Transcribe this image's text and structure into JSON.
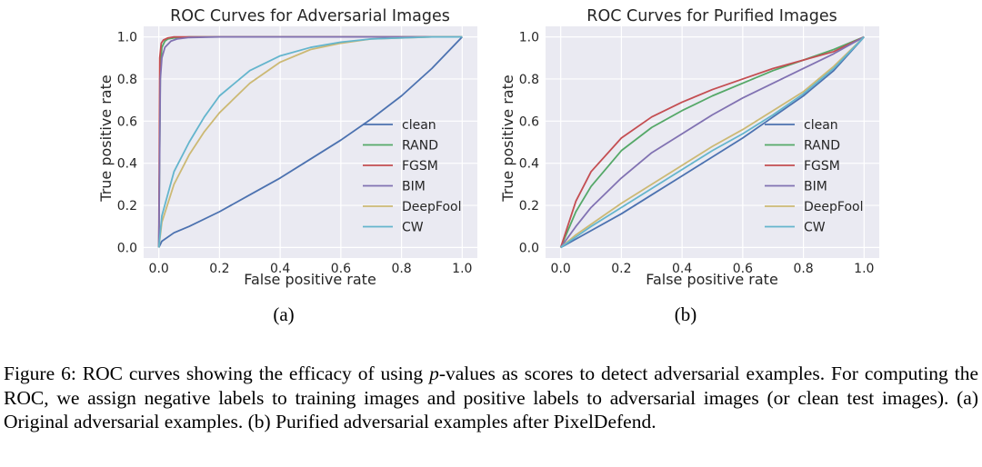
{
  "chart_data": [
    {
      "type": "line",
      "title": "ROC Curves for Adversarial Images",
      "xlabel": "False positive rate",
      "ylabel": "True positive rate",
      "xlim": [
        0,
        1
      ],
      "ylim": [
        0,
        1
      ],
      "xticks": [
        "0.0",
        "0.2",
        "0.4",
        "0.6",
        "0.8",
        "1.0"
      ],
      "yticks": [
        "0.0",
        "0.2",
        "0.4",
        "0.6",
        "0.8",
        "1.0"
      ],
      "grid": true,
      "legend_position": "lower-right",
      "sublabel": "(a)",
      "series": [
        {
          "name": "clean",
          "color": "#4c72b0",
          "x": [
            0,
            0.01,
            0.05,
            0.1,
            0.2,
            0.3,
            0.4,
            0.5,
            0.6,
            0.7,
            0.8,
            0.9,
            1.0
          ],
          "y": [
            0,
            0.03,
            0.07,
            0.1,
            0.17,
            0.25,
            0.33,
            0.42,
            0.51,
            0.61,
            0.72,
            0.85,
            1.0
          ]
        },
        {
          "name": "RAND",
          "color": "#55a868",
          "x": [
            0,
            0.005,
            0.01,
            0.02,
            0.03,
            0.05,
            0.1,
            0.2,
            1.0
          ],
          "y": [
            0,
            0.85,
            0.95,
            0.98,
            0.99,
            0.995,
            1.0,
            1.0,
            1.0
          ]
        },
        {
          "name": "FGSM",
          "color": "#c44e52",
          "x": [
            0,
            0.003,
            0.008,
            0.015,
            0.03,
            0.05,
            0.1,
            1.0
          ],
          "y": [
            0,
            0.9,
            0.97,
            0.985,
            0.995,
            1.0,
            1.0,
            1.0
          ]
        },
        {
          "name": "BIM",
          "color": "#8172b2",
          "x": [
            0,
            0.005,
            0.01,
            0.02,
            0.04,
            0.06,
            0.1,
            0.2,
            1.0
          ],
          "y": [
            0,
            0.8,
            0.9,
            0.95,
            0.98,
            0.99,
            0.997,
            1.0,
            1.0
          ]
        },
        {
          "name": "DeepFool",
          "color": "#ccb974",
          "x": [
            0,
            0.01,
            0.05,
            0.1,
            0.15,
            0.2,
            0.3,
            0.4,
            0.5,
            0.6,
            0.7,
            0.8,
            0.9,
            1.0
          ],
          "y": [
            0,
            0.12,
            0.3,
            0.44,
            0.55,
            0.64,
            0.78,
            0.88,
            0.94,
            0.97,
            0.99,
            0.995,
            1.0,
            1.0
          ]
        },
        {
          "name": "CW",
          "color": "#64b5cd",
          "x": [
            0,
            0.01,
            0.05,
            0.1,
            0.15,
            0.2,
            0.3,
            0.4,
            0.5,
            0.6,
            0.7,
            0.8,
            0.9,
            1.0
          ],
          "y": [
            0,
            0.15,
            0.36,
            0.5,
            0.62,
            0.72,
            0.84,
            0.91,
            0.95,
            0.975,
            0.99,
            0.995,
            1.0,
            1.0
          ]
        }
      ]
    },
    {
      "type": "line",
      "title": "ROC Curves for Purified Images",
      "xlabel": "False positive rate",
      "ylabel": "True positive rate",
      "xlim": [
        0,
        1
      ],
      "ylim": [
        0,
        1
      ],
      "xticks": [
        "0.0",
        "0.2",
        "0.4",
        "0.6",
        "0.8",
        "1.0"
      ],
      "yticks": [
        "0.0",
        "0.2",
        "0.4",
        "0.6",
        "0.8",
        "1.0"
      ],
      "grid": true,
      "legend_position": "lower-right",
      "sublabel": "(b)",
      "series": [
        {
          "name": "clean",
          "color": "#4c72b0",
          "x": [
            0,
            0.05,
            0.1,
            0.2,
            0.3,
            0.4,
            0.5,
            0.6,
            0.7,
            0.8,
            0.9,
            1.0
          ],
          "y": [
            0,
            0.04,
            0.08,
            0.16,
            0.25,
            0.34,
            0.43,
            0.52,
            0.62,
            0.72,
            0.84,
            1.0
          ]
        },
        {
          "name": "RAND",
          "color": "#55a868",
          "x": [
            0,
            0.05,
            0.1,
            0.2,
            0.3,
            0.4,
            0.5,
            0.6,
            0.7,
            0.8,
            0.9,
            1.0
          ],
          "y": [
            0,
            0.17,
            0.29,
            0.46,
            0.57,
            0.65,
            0.72,
            0.78,
            0.84,
            0.89,
            0.94,
            1.0
          ]
        },
        {
          "name": "FGSM",
          "color": "#c44e52",
          "x": [
            0,
            0.05,
            0.1,
            0.2,
            0.3,
            0.4,
            0.5,
            0.6,
            0.7,
            0.8,
            0.9,
            1.0
          ],
          "y": [
            0,
            0.22,
            0.36,
            0.52,
            0.62,
            0.69,
            0.75,
            0.8,
            0.85,
            0.89,
            0.93,
            1.0
          ]
        },
        {
          "name": "BIM",
          "color": "#8172b2",
          "x": [
            0,
            0.05,
            0.1,
            0.2,
            0.3,
            0.4,
            0.5,
            0.6,
            0.7,
            0.8,
            0.9,
            1.0
          ],
          "y": [
            0,
            0.1,
            0.19,
            0.33,
            0.45,
            0.54,
            0.63,
            0.71,
            0.78,
            0.85,
            0.92,
            1.0
          ]
        },
        {
          "name": "DeepFool",
          "color": "#ccb974",
          "x": [
            0,
            0.05,
            0.1,
            0.2,
            0.3,
            0.4,
            0.5,
            0.6,
            0.7,
            0.8,
            0.9,
            1.0
          ],
          "y": [
            0,
            0.06,
            0.11,
            0.21,
            0.3,
            0.39,
            0.48,
            0.56,
            0.65,
            0.74,
            0.86,
            1.0
          ]
        },
        {
          "name": "CW",
          "color": "#64b5cd",
          "x": [
            0,
            0.05,
            0.1,
            0.2,
            0.3,
            0.4,
            0.5,
            0.6,
            0.7,
            0.8,
            0.9,
            1.0
          ],
          "y": [
            0,
            0.05,
            0.1,
            0.19,
            0.28,
            0.37,
            0.46,
            0.54,
            0.63,
            0.73,
            0.85,
            1.0
          ]
        }
      ]
    }
  ],
  "caption": {
    "figure_label": "Figure 6:",
    "text_before_p": "ROC curves showing the efficacy of using",
    "p_symbol": "p",
    "text_after_p": "-values as scores to detect adversarial examples. For computing the ROC, we assign negative labels to training images and positive labels to adversarial images (or clean test images). (a) Original adversarial examples. (b) Purified adversarial examples after PixelDefend."
  }
}
